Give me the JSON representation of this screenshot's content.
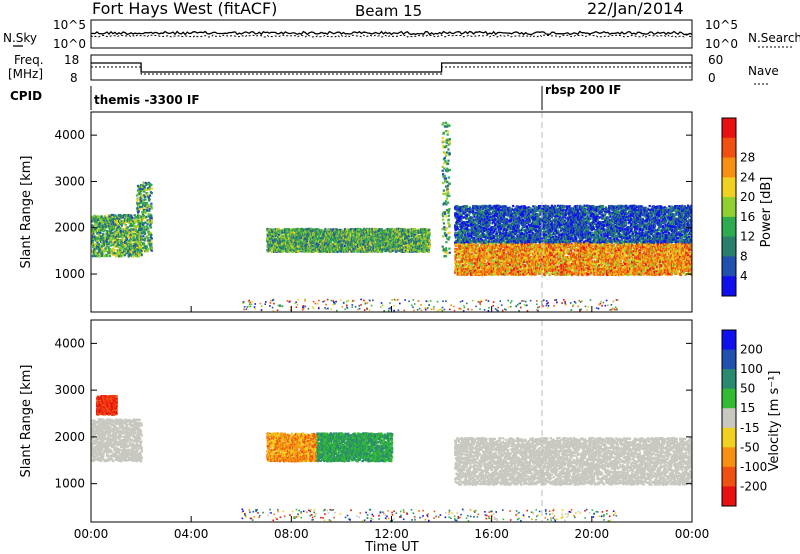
{
  "header": {
    "station": "Fort Hays West (fitACF)",
    "beam": "Beam 15",
    "date": "22/Jan/2014"
  },
  "strip": {
    "nsky_label": "N.Sky",
    "nsearch_label": "N.Search",
    "noise_ticks_left": [
      "10^5",
      "10^0"
    ],
    "noise_ticks_right": [
      "10^5",
      "10^0"
    ],
    "freq_label": "Freq.",
    "freq_unit": "[MHz]",
    "freq_ticks": [
      "18",
      "8"
    ],
    "nave_label": "Nave",
    "nave_ticks": [
      "60",
      "0"
    ],
    "cpid_label": "CPID",
    "cpid_segments": [
      {
        "label": "themis -3300 IF",
        "start_hour": 0
      },
      {
        "label": "rbsp 200 IF",
        "start_hour": 18
      }
    ],
    "freq_steps": [
      {
        "from": 0,
        "to": 2,
        "level": "high"
      },
      {
        "from": 2,
        "to": 14,
        "level": "low"
      },
      {
        "from": 14,
        "to": 24,
        "level": "high"
      }
    ]
  },
  "axes": {
    "slant_label": "Slant Range [km]",
    "time_label": "Time UT",
    "time_ticks": [
      "00:00",
      "04:00",
      "08:00",
      "12:00",
      "16:00",
      "20:00",
      "00:00"
    ],
    "range_ticks": [
      "1000",
      "2000",
      "3000",
      "4000"
    ]
  },
  "colors": {
    "power_scale": [
      "#1010ee",
      "#2050b0",
      "#2a7f6a",
      "#2eaa50",
      "#90d030",
      "#f0d020",
      "#f59010",
      "#f05010",
      "#e81010"
    ],
    "velocity_scale": [
      "#1010ee",
      "#2050b0",
      "#2a8a70",
      "#33bb33",
      "#c8c8c0",
      "#f0d020",
      "#f59010",
      "#f05010",
      "#e81010"
    ],
    "ground_scatter": "#c8c8c0"
  },
  "chart_data": [
    {
      "type": "heatmap",
      "name": "power",
      "ylabel": "Slant Range [km]",
      "xlabel": "",
      "xlim": [
        0,
        24
      ],
      "ylim": [
        180,
        4500
      ],
      "colorbar_label": "Power [dB]",
      "colorbar_ticks": [
        "4",
        "8",
        "12",
        "16",
        "20",
        "24",
        "28"
      ],
      "features": [
        {
          "t": [
            0.0,
            2.0
          ],
          "r": [
            1400,
            2300
          ],
          "level": "mid"
        },
        {
          "t": [
            1.8,
            2.4
          ],
          "r": [
            1500,
            3000
          ],
          "level": "mid"
        },
        {
          "t": [
            7.0,
            13.5
          ],
          "r": [
            1500,
            2000
          ],
          "level": "mid"
        },
        {
          "t": [
            14.0,
            14.3
          ],
          "r": [
            1400,
            4300
          ],
          "level": "mid"
        },
        {
          "t": [
            14.5,
            24.0
          ],
          "r": [
            1000,
            1700
          ],
          "level": "high"
        },
        {
          "t": [
            14.5,
            24.0
          ],
          "r": [
            1700,
            2500
          ],
          "level": "low"
        }
      ]
    },
    {
      "type": "heatmap",
      "name": "velocity",
      "ylabel": "Slant Range [km]",
      "xlabel": "Time UT",
      "xlim": [
        0,
        24
      ],
      "ylim": [
        180,
        4500
      ],
      "colorbar_label": "Velocity [m s⁻¹]",
      "colorbar_ticks": [
        "200",
        "100",
        "50",
        "15",
        "-15",
        "-50",
        "-100",
        "-200"
      ],
      "features": [
        {
          "t": [
            0.0,
            2.0
          ],
          "r": [
            1500,
            2400
          ],
          "level": "gs"
        },
        {
          "t": [
            0.2,
            1.0
          ],
          "r": [
            2500,
            2900
          ],
          "level": "neg-high"
        },
        {
          "t": [
            7.0,
            9.0
          ],
          "r": [
            1500,
            2100
          ],
          "level": "neg-mid"
        },
        {
          "t": [
            9.0,
            12.0
          ],
          "r": [
            1500,
            2100
          ],
          "level": "pos-low"
        },
        {
          "t": [
            14.5,
            24.0
          ],
          "r": [
            1000,
            2000
          ],
          "level": "gs"
        }
      ]
    }
  ]
}
